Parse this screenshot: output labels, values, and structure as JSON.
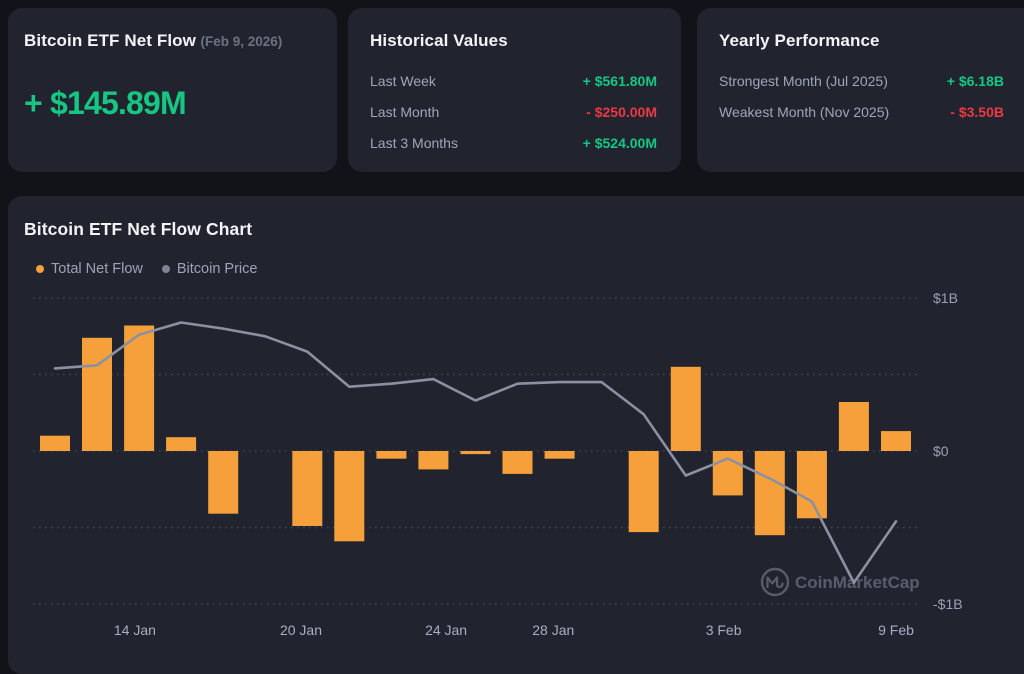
{
  "cards": {
    "net_flow": {
      "title": "Bitcoin ETF Net Flow",
      "date": "(Feb 9, 2026)",
      "value": "+ $145.89M",
      "direction": "up"
    },
    "historical": {
      "title": "Historical Values",
      "rows": [
        {
          "label": "Last Week",
          "value": "+ $561.80M",
          "direction": "up"
        },
        {
          "label": "Last Month",
          "value": "- $250.00M",
          "direction": "down"
        },
        {
          "label": "Last 3 Months",
          "value": "+ $524.00M",
          "direction": "up"
        }
      ]
    },
    "yearly": {
      "title": "Yearly Performance",
      "rows": [
        {
          "label": "Strongest Month (Jul 2025)",
          "value": "+ $6.18B",
          "direction": "up"
        },
        {
          "label": "Weakest Month (Nov 2025)",
          "value": "- $3.50B",
          "direction": "down"
        }
      ]
    }
  },
  "chart": {
    "title": "Bitcoin ETF Net Flow Chart",
    "legend": [
      {
        "label": "Total Net Flow",
        "color": "#F5A03A"
      },
      {
        "label": "Bitcoin Price",
        "color": "#7D8496"
      }
    ],
    "watermark": "CoinMarketCap"
  },
  "chart_data": {
    "type": "combo-bar-line",
    "x_slots": 21,
    "series": [
      {
        "name": "Total Net Flow",
        "type": "bar",
        "unit": "$B",
        "values": [
          0.1,
          0.74,
          0.82,
          0.09,
          -0.41,
          0,
          -0.49,
          -0.59,
          -0.05,
          -0.12,
          -0.02,
          -0.15,
          -0.05,
          0,
          -0.53,
          0.55,
          -0.29,
          -0.55,
          -0.44,
          0.32,
          0.13
        ]
      },
      {
        "name": "Bitcoin Price",
        "type": "line",
        "unit": "relative-left-axis",
        "values": [
          0.54,
          0.56,
          0.76,
          0.84,
          0.8,
          0.75,
          0.65,
          0.42,
          0.44,
          0.47,
          0.33,
          0.44,
          0.45,
          0.45,
          0.24,
          -0.16,
          -0.05,
          -0.18,
          -0.33,
          -0.86,
          -0.46
        ]
      }
    ],
    "grid_values": [
      1,
      0.5,
      0,
      -0.5,
      -1
    ],
    "y_ticks": [
      {
        "label": "$1B",
        "value": 1
      },
      {
        "label": "$0",
        "value": 0
      },
      {
        "label": "-$1B",
        "value": -1
      }
    ],
    "x_ticks": [
      {
        "label": "14 Jan",
        "slot": 1.9
      },
      {
        "label": "20 Jan",
        "slot": 5.85
      },
      {
        "label": "24 Jan",
        "slot": 9.3
      },
      {
        "label": "28 Jan",
        "slot": 11.85
      },
      {
        "label": "3 Feb",
        "slot": 15.9
      },
      {
        "label": "9 Feb",
        "slot": 20
      }
    ]
  },
  "colors": {
    "green": "#16C784",
    "red": "#EA3943",
    "bar_orange": "#F5A03A",
    "line_gray": "#8B91A3",
    "grid": "#3f4456",
    "axis_text": "#9aa1b4",
    "watermark": "#868c9d"
  }
}
